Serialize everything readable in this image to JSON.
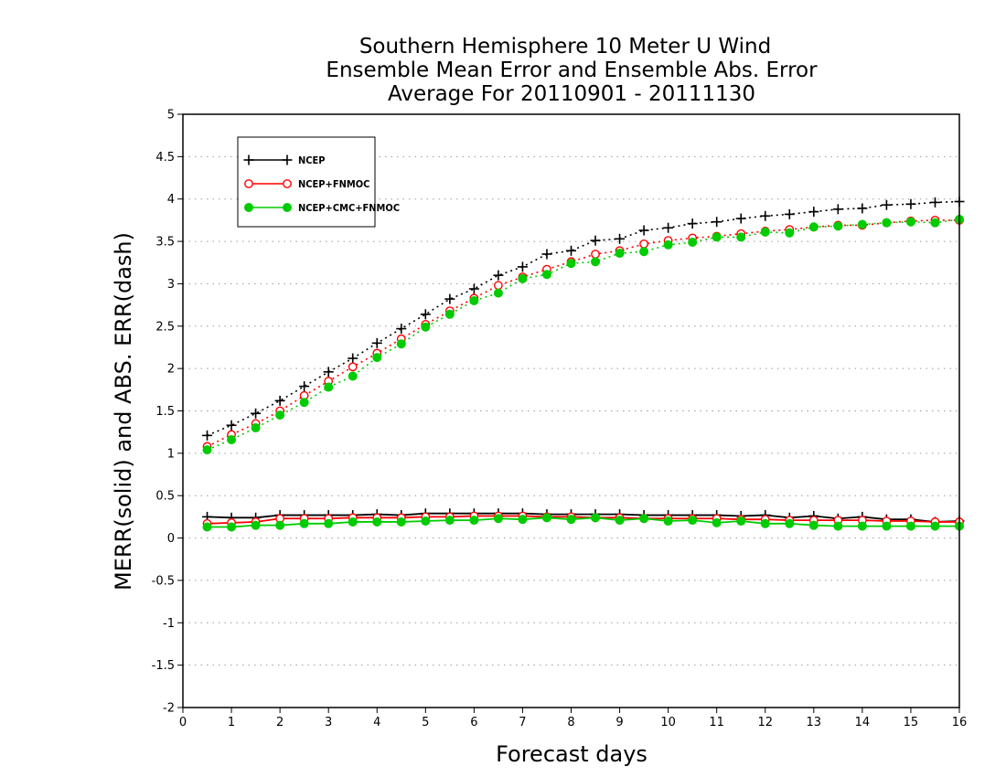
{
  "chart_data": {
    "type": "line",
    "title": [
      "Southern Hemisphere 10 Meter U Wind",
      "Ensemble Mean Error and Ensemble Abs. Error",
      "Average For 20110901 - 20111130"
    ],
    "xlabel": "Forecast days",
    "ylabel": "MERR(solid) and ABS. ERR(dash)",
    "xlim": [
      0,
      16
    ],
    "ylim": [
      -2,
      5
    ],
    "xticks": [
      "0",
      "1",
      "2",
      "3",
      "4",
      "5",
      "6",
      "7",
      "8",
      "9",
      "10",
      "11",
      "12",
      "13",
      "14",
      "15",
      "16"
    ],
    "yticks": [
      "-2",
      "-1.5",
      "-1",
      "-0.5",
      "0",
      "0.5",
      "1",
      "1.5",
      "2",
      "2.5",
      "3",
      "3.5",
      "4",
      "4.5",
      "5"
    ],
    "grid": "horizontal dotted",
    "legend_position": "top-left",
    "x": [
      0.5,
      1,
      1.5,
      2,
      2.5,
      3,
      3.5,
      4,
      4.5,
      5,
      5.5,
      6,
      6.5,
      7,
      7.5,
      8,
      8.5,
      9,
      9.5,
      10,
      10.5,
      11,
      11.5,
      12,
      12.5,
      13,
      13.5,
      14,
      14.5,
      15,
      15.5,
      16
    ],
    "series": [
      {
        "name": "NCEP",
        "color": "#000000",
        "marker": "plus",
        "abs_err": [
          1.21,
          1.33,
          1.47,
          1.62,
          1.79,
          1.96,
          2.12,
          2.3,
          2.47,
          2.64,
          2.82,
          2.94,
          3.1,
          3.2,
          3.35,
          3.39,
          3.51,
          3.53,
          3.63,
          3.66,
          3.71,
          3.73,
          3.77,
          3.8,
          3.82,
          3.85,
          3.88,
          3.89,
          3.93,
          3.94,
          3.96,
          3.97
        ],
        "mean_err": [
          0.25,
          0.24,
          0.24,
          0.27,
          0.27,
          0.27,
          0.27,
          0.28,
          0.27,
          0.29,
          0.29,
          0.29,
          0.29,
          0.29,
          0.28,
          0.28,
          0.28,
          0.28,
          0.27,
          0.27,
          0.27,
          0.27,
          0.26,
          0.27,
          0.24,
          0.26,
          0.23,
          0.25,
          0.22,
          0.22,
          0.19,
          0.2
        ]
      },
      {
        "name": "NCEP+FNMOC",
        "color": "#ff0000",
        "marker": "open-circle",
        "abs_err": [
          1.08,
          1.22,
          1.35,
          1.5,
          1.68,
          1.85,
          2.02,
          2.18,
          2.35,
          2.52,
          2.68,
          2.83,
          2.98,
          3.08,
          3.17,
          3.26,
          3.35,
          3.39,
          3.47,
          3.51,
          3.54,
          3.56,
          3.59,
          3.62,
          3.64,
          3.67,
          3.69,
          3.69,
          3.72,
          3.74,
          3.75,
          3.75
        ],
        "mean_err": [
          0.17,
          0.18,
          0.19,
          0.23,
          0.23,
          0.23,
          0.24,
          0.24,
          0.24,
          0.25,
          0.25,
          0.26,
          0.26,
          0.26,
          0.25,
          0.25,
          0.24,
          0.24,
          0.23,
          0.23,
          0.23,
          0.23,
          0.22,
          0.22,
          0.21,
          0.21,
          0.21,
          0.21,
          0.2,
          0.2,
          0.19,
          0.19
        ]
      },
      {
        "name": "NCEP+CMC+FNMOC",
        "color": "#00cc00",
        "marker": "filled-circle",
        "abs_err": [
          1.04,
          1.16,
          1.3,
          1.45,
          1.6,
          1.78,
          1.91,
          2.13,
          2.29,
          2.49,
          2.64,
          2.8,
          2.89,
          3.06,
          3.11,
          3.24,
          3.26,
          3.36,
          3.38,
          3.46,
          3.49,
          3.55,
          3.55,
          3.61,
          3.6,
          3.67,
          3.68,
          3.7,
          3.72,
          3.73,
          3.72,
          3.76
        ],
        "mean_err": [
          0.13,
          0.13,
          0.15,
          0.15,
          0.17,
          0.17,
          0.19,
          0.19,
          0.19,
          0.2,
          0.21,
          0.21,
          0.23,
          0.22,
          0.24,
          0.22,
          0.24,
          0.21,
          0.23,
          0.2,
          0.21,
          0.18,
          0.2,
          0.17,
          0.17,
          0.15,
          0.14,
          0.14,
          0.14,
          0.14,
          0.14,
          0.14
        ]
      }
    ]
  }
}
